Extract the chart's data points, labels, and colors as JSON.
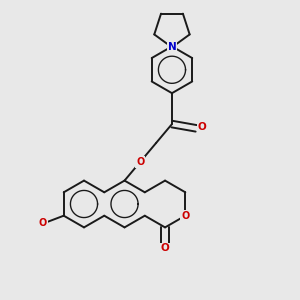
{
  "background_color": "#e8e8e8",
  "bond_color": "#1a1a1a",
  "bond_width": 1.4,
  "atom_colors": {
    "N": "#0000cc",
    "O": "#cc0000",
    "C": "#1a1a1a"
  },
  "figsize": [
    3.0,
    3.0
  ],
  "dpi": 100
}
